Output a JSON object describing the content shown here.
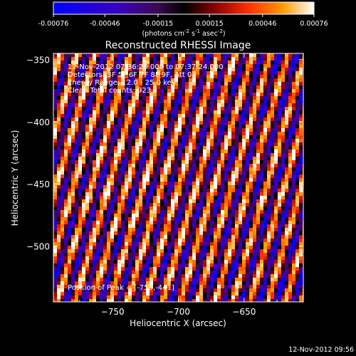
{
  "chart_data": {
    "type": "heatmap",
    "title": "Reconstructed RHESSI Image",
    "xlabel": "Heliocentric X (arcsec)",
    "ylabel": "Heliocentric Y (arcsec)",
    "xlim": [
      -795,
      -605
    ],
    "ylim": [
      -545,
      -345
    ],
    "xticks": [
      -750,
      -700,
      -650
    ],
    "yticks": [
      -350,
      -400,
      -450,
      -500
    ],
    "colorbar": {
      "min": -0.00076,
      "max": 0.00076,
      "ticks": [
        "-0.00076",
        "-0.00046",
        "-0.00015",
        "0.00015",
        "0.00046",
        "0.00076"
      ],
      "tick_values": [
        -0.00076,
        -0.00046,
        -0.00015,
        0.00015,
        0.00046,
        0.00076
      ],
      "label_prefix": "(photons cm",
      "label_exp1": "-2",
      "label_mid": " s",
      "label_exp2": "-1",
      "label_mid2": " asec",
      "label_exp3": "-2",
      "label_suffix": ")",
      "colormap": [
        "#0000ff",
        "#3a00c0",
        "#3a0a50",
        "#000000",
        "#8a0000",
        "#ff3000",
        "#ff9a00",
        "#ffffff"
      ]
    },
    "annotations": [
      "12-Nov-2012 07:36:28.000 to 07:37:24.000",
      "Detectors: 3F 5F 6F 7F 8F 9F, Att 0",
      "Energy Range: 12.0 - 25.0 keV",
      "Clean    Total counts: 923."
    ],
    "peak_label": "Position of Peak = [-759,-441]",
    "grid": false,
    "pattern": {
      "description": "diagonal fringe pattern",
      "stripe_direction": "upper-left to lower-right"
    }
  },
  "footer": {
    "timestamp": "12-Nov-2012 09:56"
  }
}
